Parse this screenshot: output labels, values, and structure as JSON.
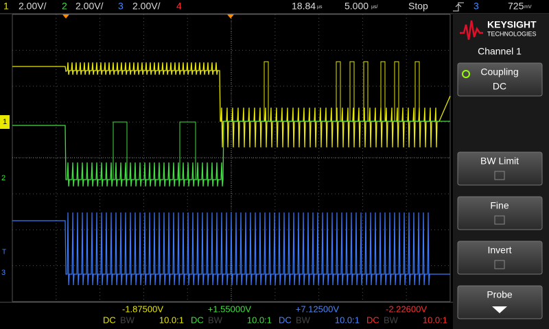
{
  "top_bar": {
    "channels": [
      {
        "number": "1",
        "scale": "2.00V/"
      },
      {
        "number": "2",
        "scale": "2.00V/"
      },
      {
        "number": "3",
        "scale": "2.00V/"
      },
      {
        "number": "4"
      }
    ],
    "delay": "18.84",
    "delay_unit": "µs",
    "timebase": "5.000",
    "timebase_unit": "µs/",
    "run_state": "Stop",
    "trigger_source": "3",
    "trigger_level": "725",
    "trigger_unit": "mV"
  },
  "brand": {
    "name": "KEYSIGHT",
    "sub": "TECHNOLOGIES"
  },
  "menu": {
    "title": "Channel 1",
    "softkeys": [
      {
        "label": "Coupling",
        "value": "DC"
      },
      {
        "label": "BW Limit"
      },
      {
        "label": "Fine"
      },
      {
        "label": "Invert"
      },
      {
        "label": "Probe"
      }
    ]
  },
  "bottom": {
    "channels": [
      {
        "offset": "-1.87500V",
        "coupling": "DC",
        "bw": "BW",
        "probe": "10.0:1"
      },
      {
        "offset": "+1.55000V",
        "coupling": "DC",
        "bw": "BW",
        "probe": "10.0:1"
      },
      {
        "offset": "+7.12500V",
        "coupling": "DC",
        "bw": "BW",
        "probe": "10.0:1"
      },
      {
        "offset": "-2.22600V",
        "coupling": "DC",
        "bw": "BW",
        "probe": "10.0:1"
      }
    ]
  },
  "markers": {
    "ch1": "1",
    "ch2": "2",
    "ch3": "3",
    "trigger": "T"
  }
}
